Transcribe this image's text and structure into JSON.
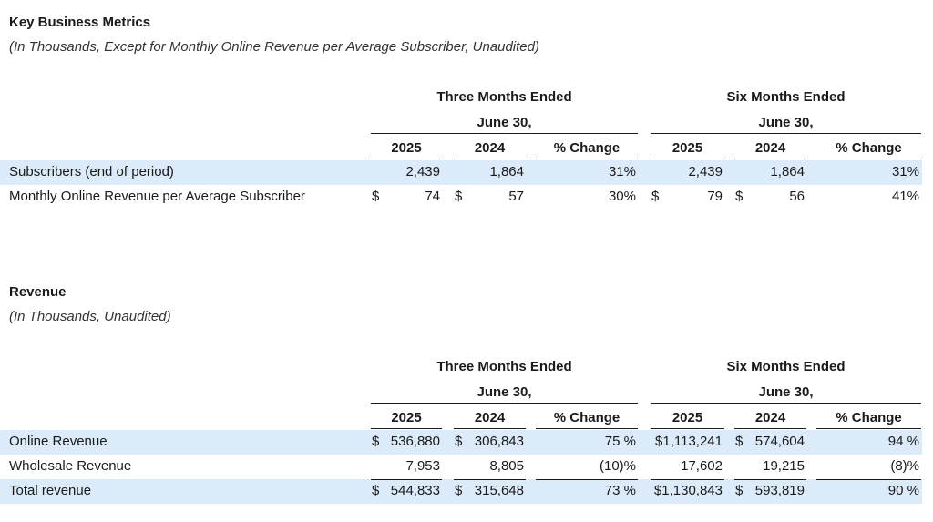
{
  "metrics": {
    "title": "Key Business Metrics",
    "subtitle": "(In Thousands, Except for Monthly Online Revenue per Average Subscriber, Unaudited)",
    "group1": "Three Months Ended",
    "group2": "Six Months Ended",
    "date_label": "June 30,",
    "columns": [
      "2025",
      "2024",
      "% Change",
      "2025",
      "2024",
      "% Change"
    ],
    "rows": [
      {
        "label": "Subscribers (end of period)",
        "highlight": true,
        "cells": [
          {
            "cur": "",
            "val": "2,439"
          },
          {
            "cur": "",
            "val": "1,864"
          },
          {
            "cur": "",
            "val": "31%"
          },
          {
            "cur": "",
            "val": "2,439"
          },
          {
            "cur": "",
            "val": "1,864"
          },
          {
            "cur": "",
            "val": "31%"
          }
        ]
      },
      {
        "label": "Monthly Online Revenue per Average Subscriber",
        "highlight": false,
        "cells": [
          {
            "cur": "$",
            "val": "74"
          },
          {
            "cur": "$",
            "val": "57"
          },
          {
            "cur": "",
            "val": "30%"
          },
          {
            "cur": "$",
            "val": "79"
          },
          {
            "cur": "$",
            "val": "56"
          },
          {
            "cur": "",
            "val": "41%"
          }
        ]
      }
    ]
  },
  "revenue": {
    "title": "Revenue",
    "subtitle": "(In Thousands, Unaudited)",
    "group1": "Three Months Ended",
    "group2": "Six Months Ended",
    "date_label": "June 30,",
    "columns": [
      "2025",
      "2024",
      "% Change",
      "2025",
      "2024",
      "% Change"
    ],
    "rows": [
      {
        "label": "Online Revenue",
        "highlight": true,
        "cells": [
          {
            "cur": "$",
            "val": "536,880"
          },
          {
            "cur": "$",
            "val": "306,843"
          },
          {
            "cur": "",
            "val": "75 %"
          },
          {
            "cur": "",
            "val": "$1,113,241"
          },
          {
            "cur": "$",
            "val": "574,604"
          },
          {
            "cur": "",
            "val": "94 %"
          }
        ]
      },
      {
        "label": "Wholesale Revenue",
        "highlight": false,
        "cells": [
          {
            "cur": "",
            "val": "7,953"
          },
          {
            "cur": "",
            "val": "8,805"
          },
          {
            "cur": "",
            "val": "(10)%"
          },
          {
            "cur": "",
            "val": "17,602"
          },
          {
            "cur": "",
            "val": "19,215"
          },
          {
            "cur": "",
            "val": "(8)%"
          }
        ]
      },
      {
        "label": "Total revenue",
        "highlight": true,
        "cells": [
          {
            "cur": "$",
            "val": "544,833"
          },
          {
            "cur": "$",
            "val": "315,648"
          },
          {
            "cur": "",
            "val": "73 %"
          },
          {
            "cur": "",
            "val": "$1,130,843"
          },
          {
            "cur": "$",
            "val": "593,819"
          },
          {
            "cur": "",
            "val": "90 %"
          }
        ]
      }
    ]
  }
}
